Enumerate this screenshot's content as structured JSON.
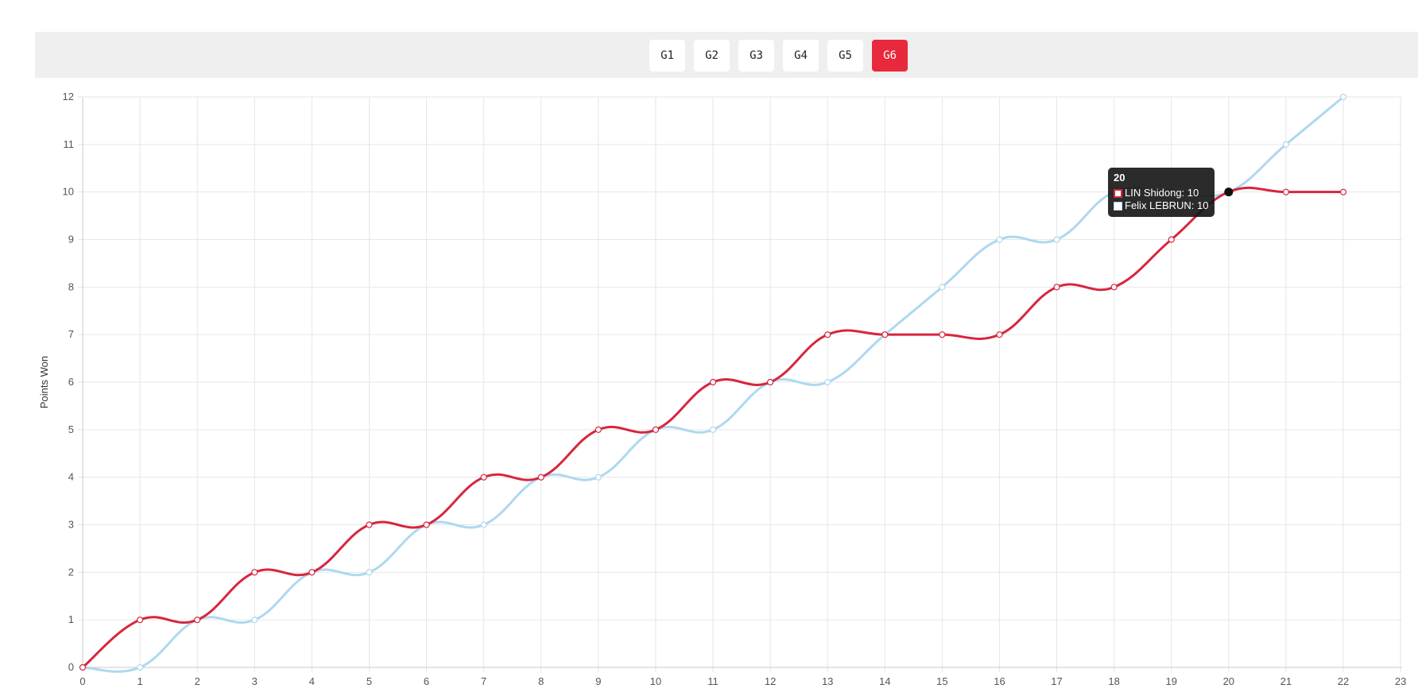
{
  "games": {
    "tabs": [
      "G1",
      "G2",
      "G3",
      "G4",
      "G5",
      "G6"
    ],
    "active_index": 5
  },
  "colors": {
    "series_a": "#d7263d",
    "series_b": "#aed8f0",
    "tab_active": "#e8283c"
  },
  "chart_data": {
    "type": "line",
    "ylabel": "Points Won",
    "xlabel": "",
    "xlim": [
      0,
      23
    ],
    "ylim": [
      0,
      12
    ],
    "x_ticks": [
      0,
      1,
      2,
      3,
      4,
      5,
      6,
      7,
      8,
      9,
      10,
      11,
      12,
      13,
      14,
      15,
      16,
      17,
      18,
      19,
      20,
      21,
      22,
      23
    ],
    "y_ticks": [
      0,
      1,
      2,
      3,
      4,
      5,
      6,
      7,
      8,
      9,
      10,
      11,
      12
    ],
    "grid": true,
    "x": [
      0,
      1,
      2,
      3,
      4,
      5,
      6,
      7,
      8,
      9,
      10,
      11,
      12,
      13,
      14,
      15,
      16,
      17,
      18,
      19,
      20,
      21,
      22
    ],
    "series": [
      {
        "name": "LIN Shidong",
        "color": "#d7263d",
        "values": [
          0,
          1,
          1,
          2,
          2,
          3,
          3,
          4,
          4,
          5,
          5,
          6,
          6,
          7,
          7,
          7,
          7,
          8,
          8,
          9,
          10,
          10,
          10
        ]
      },
      {
        "name": "Felix LEBRUN",
        "color": "#aed8f0",
        "values": [
          0,
          0,
          1,
          1,
          2,
          2,
          3,
          3,
          4,
          4,
          5,
          5,
          6,
          6,
          7,
          8,
          9,
          9,
          10,
          10,
          10,
          11,
          12
        ]
      }
    ],
    "tooltip": {
      "title": "20",
      "rows": [
        "LIN Shidong: 10",
        "Felix LEBRUN: 10"
      ],
      "x": 20
    }
  }
}
